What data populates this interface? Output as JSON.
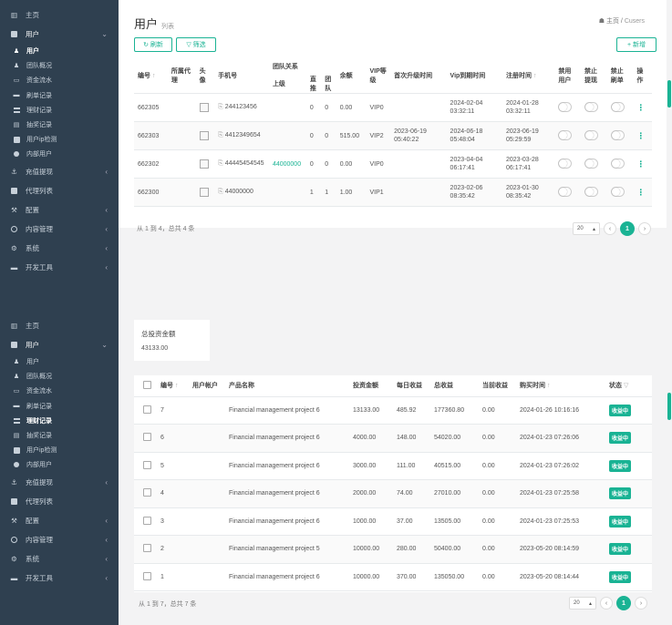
{
  "sidebar": {
    "home": "主页",
    "user": "用户",
    "subs": [
      "用户",
      "团队概况",
      "资金流水",
      "刷单记录",
      "理财记录",
      "抽奖记录",
      "用户ip检测",
      "内部用户"
    ],
    "recharge": "充值提现",
    "agent": "代理列表",
    "config": "配置",
    "content": "内容管理",
    "system": "系统",
    "devtools": "开发工具"
  },
  "top": {
    "title": "用户",
    "subtitle": "列表",
    "breadcrumb_home": "主页",
    "breadcrumb_sep": "/",
    "breadcrumb_cur": "Cusers",
    "refresh": "刷新",
    "filter": "筛选",
    "add": "+ 新增",
    "group_header": "团队关系",
    "headers": {
      "id": "编号",
      "agent": "所属代理",
      "avatar": "头像",
      "phone": "手机号",
      "upper": "上级",
      "direct": "直推",
      "team": "团队",
      "balance": "余额",
      "vip": "VIP等级",
      "first_up": "首次升级时间",
      "vip_exp": "Vip到期时间",
      "reg": "注册时间",
      "disable": "禁用用户",
      "no_withdraw": "禁止提现",
      "no_brush": "禁止刷单",
      "ops": "操作"
    },
    "rows": [
      {
        "id": "662305",
        "phone": "244123456",
        "upper": "",
        "direct": "0",
        "team": "0",
        "balance": "0.00",
        "vip": "VIP0",
        "first_up": "",
        "vip_exp": "2024-02-04 03:32:11",
        "reg": "2024-01-28 03:32:11"
      },
      {
        "id": "662303",
        "phone": "4412349654",
        "upper": "",
        "direct": "0",
        "team": "0",
        "balance": "515.00",
        "vip": "VIP2",
        "first_up": "2023-06-19 05:40:22",
        "vip_exp": "2024-06-18 05:48:04",
        "reg": "2023-06-19 05:29:59"
      },
      {
        "id": "662302",
        "phone": "44445454545",
        "upper": "44000000",
        "direct": "0",
        "team": "0",
        "balance": "0.00",
        "vip": "VIP0",
        "first_up": "",
        "vip_exp": "2023-04-04 06:17:41",
        "reg": "2023-03-28 06:17:41"
      },
      {
        "id": "662300",
        "phone": "44000000",
        "upper": "",
        "direct": "1",
        "team": "1",
        "balance": "1.00",
        "vip": "VIP1",
        "first_up": "",
        "vip_exp": "2023-02-06 08:35:42",
        "reg": "2023-01-30 08:35:42"
      }
    ],
    "footer": "从 1 到 4，总共 4 条",
    "page_size": "20",
    "page": "1"
  },
  "bottom": {
    "total_label": "总投资金额",
    "total_value": "43133.00",
    "headers": {
      "id": "编号",
      "account": "用户帐户",
      "product": "产品名称",
      "amount": "投资金额",
      "daily": "每日收益",
      "total": "总收益",
      "today": "当前收益",
      "time": "购买时间",
      "status": "状态"
    },
    "rows": [
      {
        "id": "7",
        "product": "Financial management project 6",
        "amount": "13133.00",
        "daily": "485.92",
        "total": "177360.80",
        "today": "0.00",
        "time": "2024-01-26 10:16:16",
        "status": "收益中"
      },
      {
        "id": "6",
        "product": "Financial management project 6",
        "amount": "4000.00",
        "daily": "148.00",
        "total": "54020.00",
        "today": "0.00",
        "time": "2024-01-23 07:26:06",
        "status": "收益中"
      },
      {
        "id": "5",
        "product": "Financial management project 6",
        "amount": "3000.00",
        "daily": "111.00",
        "total": "40515.00",
        "today": "0.00",
        "time": "2024-01-23 07:26:02",
        "status": "收益中"
      },
      {
        "id": "4",
        "product": "Financial management project 6",
        "amount": "2000.00",
        "daily": "74.00",
        "total": "27010.00",
        "today": "0.00",
        "time": "2024-01-23 07:25:58",
        "status": "收益中"
      },
      {
        "id": "3",
        "product": "Financial management project 6",
        "amount": "1000.00",
        "daily": "37.00",
        "total": "13505.00",
        "today": "0.00",
        "time": "2024-01-23 07:25:53",
        "status": "收益中"
      },
      {
        "id": "2",
        "product": "Financial management project 5",
        "amount": "10000.00",
        "daily": "280.00",
        "total": "50400.00",
        "today": "0.00",
        "time": "2023-05-20 08:14:59",
        "status": "收益中"
      },
      {
        "id": "1",
        "product": "Financial management project 6",
        "amount": "10000.00",
        "daily": "370.00",
        "total": "135050.00",
        "today": "0.00",
        "time": "2023-05-20 08:14:44",
        "status": "收益中"
      }
    ],
    "footer": "从 1 到 7，总共 7 条",
    "page_size": "20",
    "page": "1"
  },
  "colors": {
    "accent": "#1ab394",
    "sidebar": "#2f4050"
  }
}
